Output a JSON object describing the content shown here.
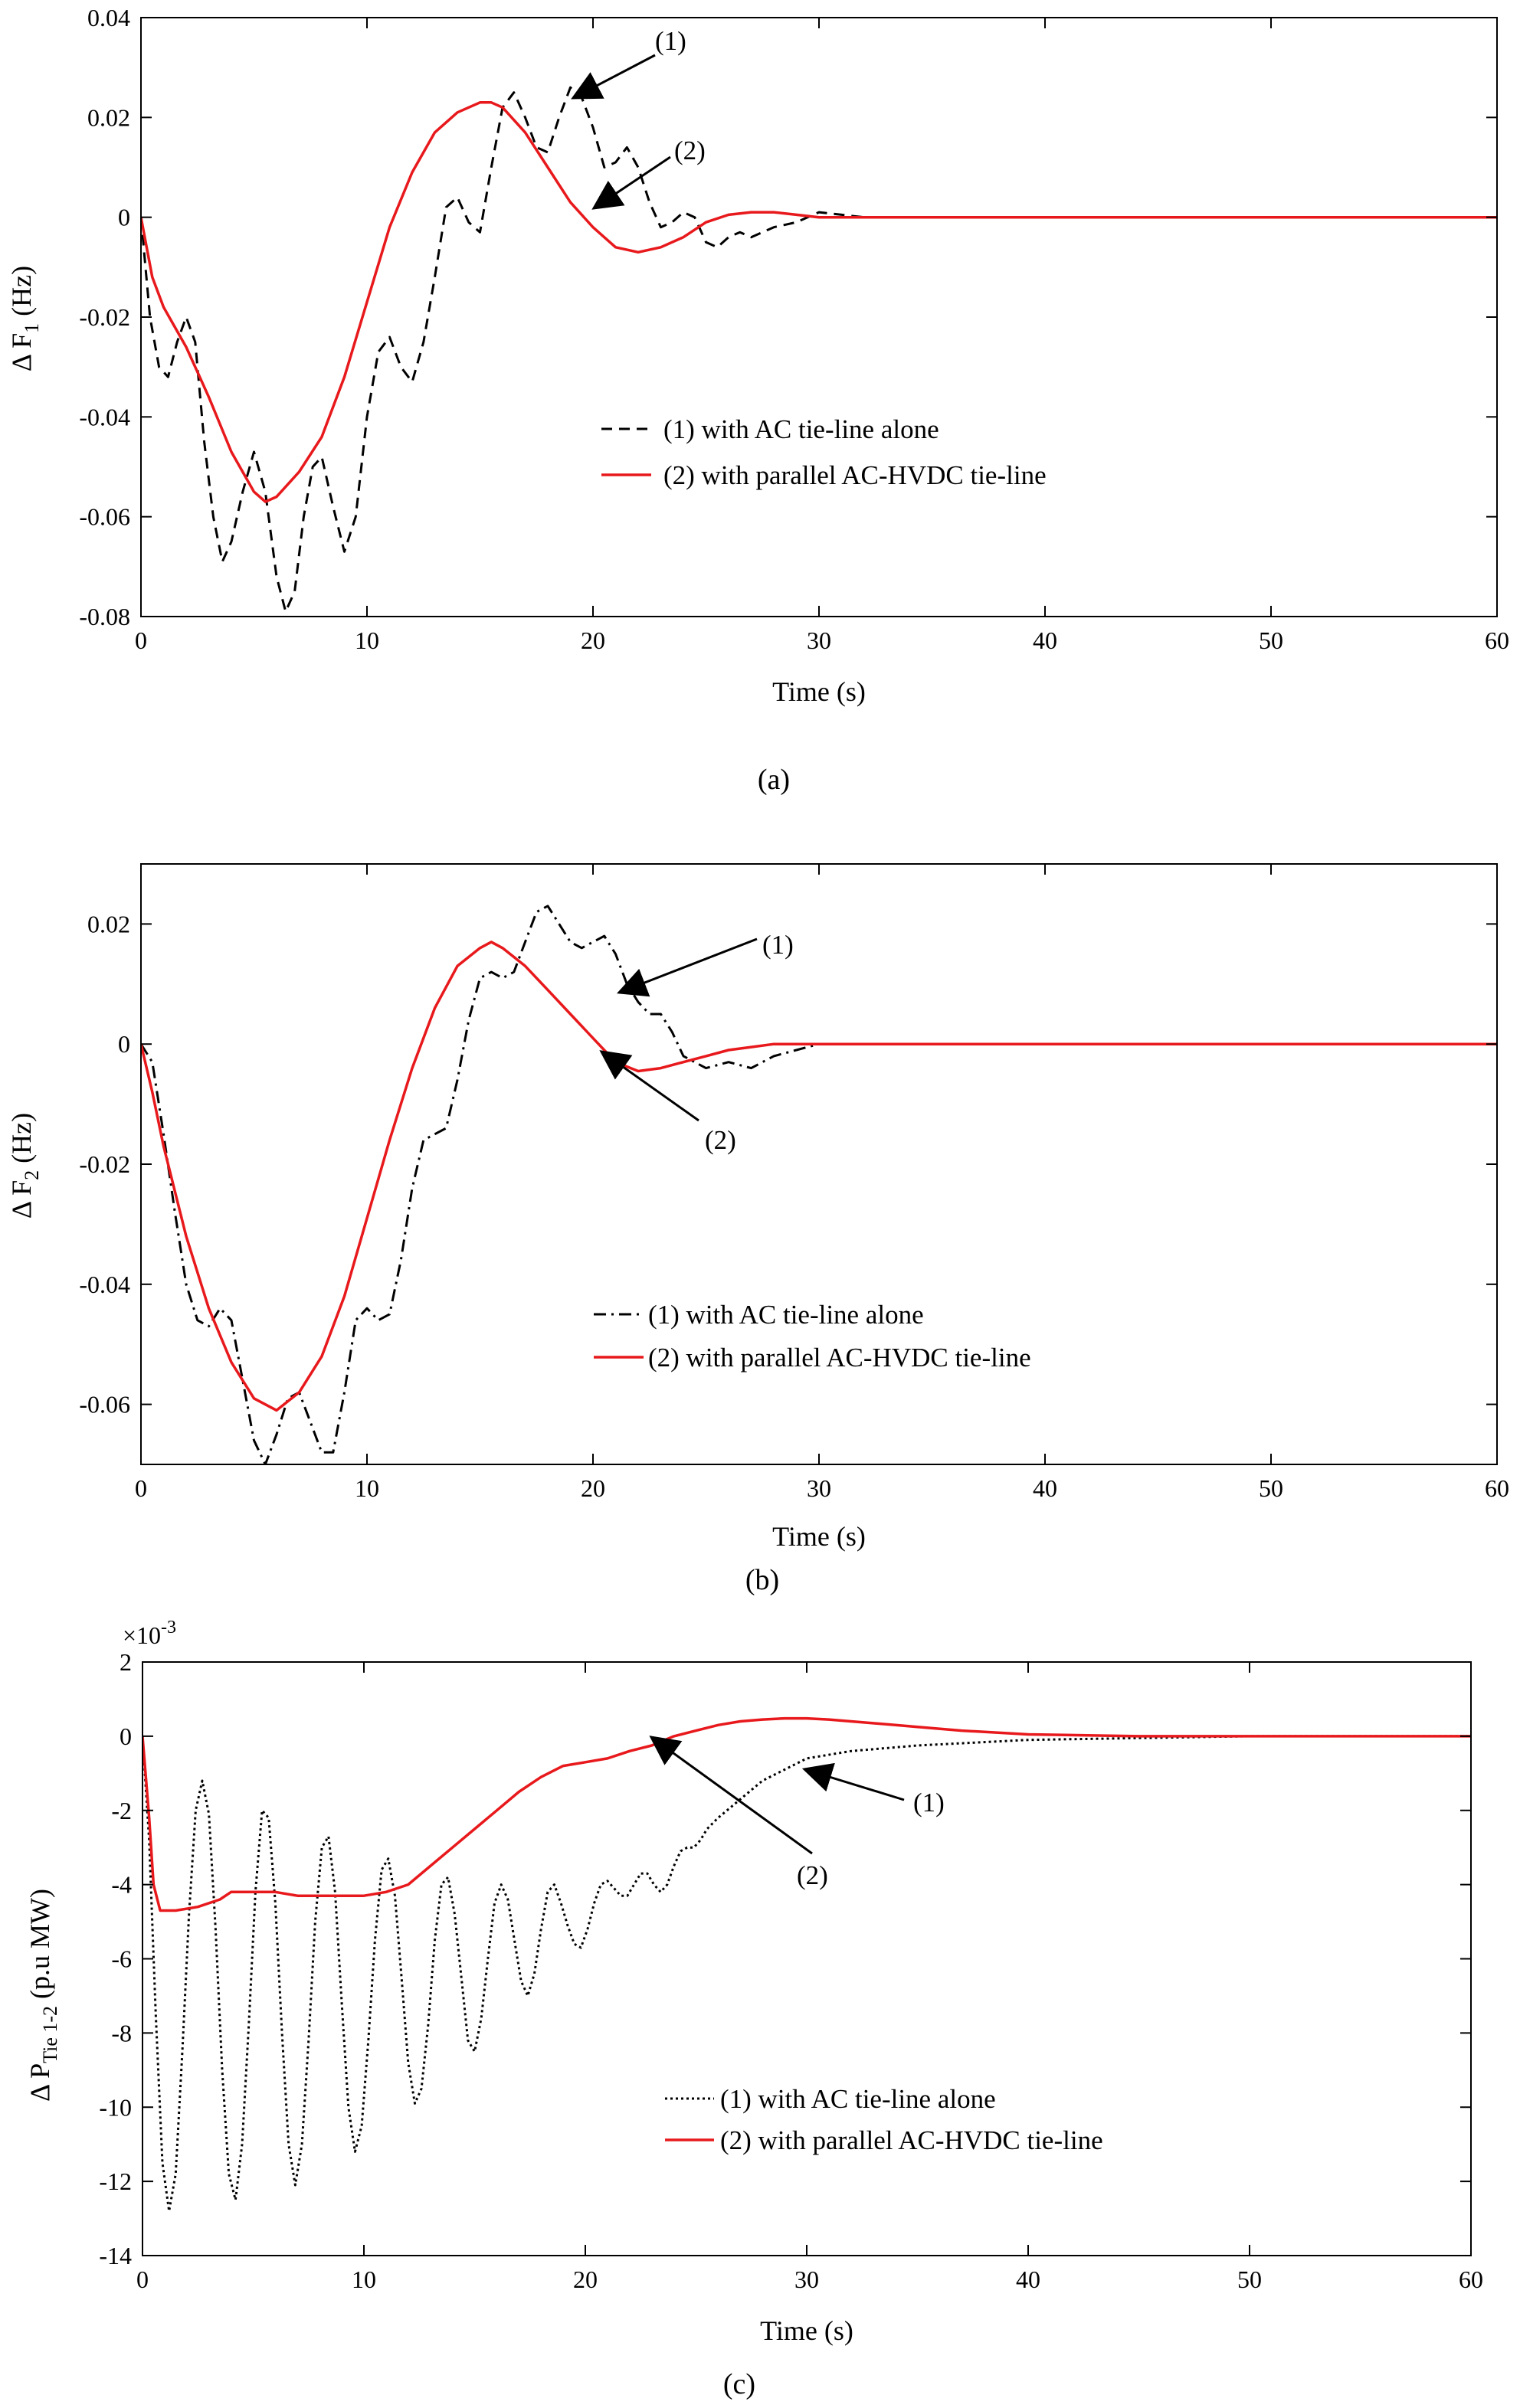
{
  "chart_data": [
    {
      "type": "line",
      "caption": "(a)",
      "xlabel": "Time (s)",
      "ylabel": {
        "prefix": "Δ F",
        "sub": "1",
        "suffix": " (Hz)"
      },
      "xlim": [
        0,
        60
      ],
      "ylim": [
        -0.08,
        0.04
      ],
      "xticks": [
        0,
        10,
        20,
        30,
        40,
        50,
        60
      ],
      "xtick_labels": [
        "0",
        "10",
        "20",
        "30",
        "40",
        "50",
        "60"
      ],
      "yticks": [
        -0.08,
        -0.06,
        -0.04,
        -0.02,
        0,
        0.02,
        0.04
      ],
      "ytick_labels": [
        "-0.08",
        "-0.06",
        "-0.04",
        "-0.02",
        "0",
        "0.02",
        "0.04"
      ],
      "exponent_label": "",
      "legend_position": "center-right",
      "series": [
        {
          "name": "(1) with AC tie-line alone",
          "color": "#000000",
          "style": "dashed",
          "x": [
            0,
            0.4,
            0.8,
            1.2,
            1.6,
            2.0,
            2.4,
            2.8,
            3.2,
            3.6,
            4.0,
            4.5,
            5.0,
            5.5,
            6.0,
            6.4,
            6.8,
            7.2,
            7.6,
            8.0,
            8.5,
            9.0,
            9.5,
            10.0,
            10.5,
            11.0,
            11.5,
            12.0,
            12.5,
            13.0,
            13.5,
            14.0,
            14.5,
            15.0,
            15.5,
            16.0,
            16.5,
            17.0,
            17.5,
            18.0,
            18.5,
            19.0,
            19.5,
            20.0,
            20.5,
            21.0,
            21.5,
            22.0,
            22.5,
            23.0,
            23.5,
            24.0,
            24.5,
            25.0,
            25.5,
            26.0,
            26.5,
            27.0,
            27.5,
            28.0,
            29.0,
            30.0,
            31.0,
            32.0,
            35.0,
            40.0,
            50.0,
            60.0
          ],
          "y": [
            0,
            -0.02,
            -0.03,
            -0.032,
            -0.025,
            -0.02,
            -0.025,
            -0.045,
            -0.06,
            -0.069,
            -0.065,
            -0.055,
            -0.047,
            -0.055,
            -0.072,
            -0.079,
            -0.075,
            -0.06,
            -0.05,
            -0.048,
            -0.058,
            -0.067,
            -0.06,
            -0.04,
            -0.027,
            -0.024,
            -0.03,
            -0.033,
            -0.025,
            -0.012,
            0.002,
            0.004,
            -0.001,
            -0.003,
            0.01,
            0.022,
            0.025,
            0.02,
            0.014,
            0.013,
            0.02,
            0.026,
            0.024,
            0.018,
            0.01,
            0.011,
            0.014,
            0.01,
            0.003,
            -0.002,
            -0.001,
            0.001,
            0.0,
            -0.005,
            -0.006,
            -0.004,
            -0.003,
            -0.004,
            -0.003,
            -0.002,
            -0.001,
            0.001,
            0.0005,
            0.0,
            0.0,
            0.0,
            0.0,
            0.0
          ]
        },
        {
          "name": "(2) with parallel AC-HVDC tie-line",
          "color": "#e8191c",
          "style": "solid",
          "x": [
            0,
            0.5,
            1,
            2,
            3,
            4,
            5,
            5.5,
            6,
            7,
            8,
            9,
            10,
            11,
            12,
            13,
            14,
            15,
            15.5,
            16,
            17,
            18,
            19,
            20,
            21,
            22,
            23,
            24,
            25,
            26,
            27,
            28,
            29,
            30,
            35,
            40,
            50,
            60
          ],
          "y": [
            0,
            -0.012,
            -0.018,
            -0.026,
            -0.036,
            -0.047,
            -0.055,
            -0.057,
            -0.056,
            -0.051,
            -0.044,
            -0.032,
            -0.017,
            -0.002,
            0.009,
            0.017,
            0.021,
            0.023,
            0.023,
            0.022,
            0.017,
            0.01,
            0.003,
            -0.002,
            -0.006,
            -0.007,
            -0.006,
            -0.004,
            -0.001,
            0.0005,
            0.001,
            0.001,
            0.0005,
            0.0,
            0.0,
            0.0,
            0.0,
            0.0
          ]
        }
      ],
      "annotations": [
        "(1)",
        "(2)"
      ]
    },
    {
      "type": "line",
      "caption": "(b)",
      "xlabel": "Time (s)",
      "ylabel": {
        "prefix": "Δ F",
        "sub": "2",
        "suffix": " (Hz)"
      },
      "xlim": [
        0,
        60
      ],
      "ylim": [
        -0.07,
        0.03
      ],
      "xticks": [
        0,
        10,
        20,
        30,
        40,
        50,
        60
      ],
      "xtick_labels": [
        "0",
        "10",
        "20",
        "30",
        "40",
        "50",
        "60"
      ],
      "yticks": [
        -0.06,
        -0.04,
        -0.02,
        0,
        0.02
      ],
      "ytick_labels": [
        "-0.06",
        "-0.04",
        "-0.02",
        "0",
        "0.02"
      ],
      "exponent_label": "",
      "legend_position": "center-right",
      "series": [
        {
          "name": "(1) with AC tie-line alone",
          "color": "#000000",
          "style": "dashdot",
          "x": [
            0,
            0.5,
            1,
            1.5,
            2,
            2.5,
            3,
            3.5,
            4,
            4.5,
            5,
            5.5,
            6,
            6.5,
            7,
            7.5,
            8,
            8.5,
            9,
            9.5,
            10,
            10.5,
            11,
            11.5,
            12,
            12.5,
            13,
            13.5,
            14,
            14.5,
            15,
            15.5,
            16,
            16.5,
            17,
            17.5,
            18,
            18.5,
            19,
            19.5,
            20,
            20.5,
            21,
            21.5,
            22,
            22.5,
            23,
            23.5,
            24,
            25,
            26,
            27,
            28,
            29,
            30,
            35,
            40,
            50,
            60
          ],
          "y": [
            0,
            -0.003,
            -0.015,
            -0.028,
            -0.04,
            -0.046,
            -0.047,
            -0.044,
            -0.046,
            -0.056,
            -0.066,
            -0.07,
            -0.065,
            -0.059,
            -0.058,
            -0.063,
            -0.068,
            -0.068,
            -0.058,
            -0.046,
            -0.044,
            -0.046,
            -0.045,
            -0.036,
            -0.024,
            -0.016,
            -0.015,
            -0.014,
            -0.006,
            0.004,
            0.011,
            0.012,
            0.011,
            0.012,
            0.017,
            0.022,
            0.023,
            0.02,
            0.017,
            0.016,
            0.017,
            0.018,
            0.015,
            0.01,
            0.007,
            0.005,
            0.005,
            0.002,
            -0.002,
            -0.004,
            -0.003,
            -0.004,
            -0.002,
            -0.001,
            0.0,
            0.0,
            0.0,
            0.0,
            0.0
          ]
        },
        {
          "name": "(2) with parallel AC-HVDC tie-line",
          "color": "#e8191c",
          "style": "solid",
          "x": [
            0,
            0.5,
            1,
            2,
            3,
            4,
            5,
            6,
            7,
            8,
            9,
            10,
            11,
            12,
            13,
            14,
            15,
            15.5,
            16,
            17,
            18,
            19,
            20,
            21,
            22,
            23,
            24,
            25,
            26,
            27,
            28,
            29,
            30,
            35,
            40,
            50,
            60
          ],
          "y": [
            0,
            -0.008,
            -0.017,
            -0.032,
            -0.044,
            -0.053,
            -0.059,
            -0.061,
            -0.058,
            -0.052,
            -0.042,
            -0.029,
            -0.016,
            -0.004,
            0.006,
            0.013,
            0.016,
            0.017,
            0.016,
            0.013,
            0.009,
            0.005,
            0.001,
            -0.003,
            -0.0045,
            -0.004,
            -0.003,
            -0.002,
            -0.001,
            -0.0005,
            0.0,
            0.0,
            0.0,
            0.0,
            0.0,
            0.0,
            0.0
          ]
        }
      ],
      "annotations": [
        "(1)",
        "(2)"
      ]
    },
    {
      "type": "line",
      "caption": "(c)",
      "xlabel": "Time (s)",
      "ylabel": {
        "prefix": "Δ P",
        "sub": "Tie 1-2",
        "suffix": " (p.u MW)"
      },
      "xlim": [
        0,
        60
      ],
      "ylim": [
        -0.014,
        0.002
      ],
      "xticks": [
        0,
        10,
        20,
        30,
        40,
        50,
        60
      ],
      "xtick_labels": [
        "0",
        "10",
        "20",
        "30",
        "40",
        "50",
        "60"
      ],
      "yticks": [
        -0.014,
        -0.012,
        -0.01,
        -0.008,
        -0.006,
        -0.004,
        -0.002,
        0,
        0.002
      ],
      "ytick_labels": [
        "-14",
        "-12",
        "-10",
        "-8",
        "-6",
        "-4",
        "-2",
        "0",
        "2"
      ],
      "exponent_label": "×10-3",
      "legend_position": "lower-center",
      "series": [
        {
          "name": "(1) with AC tie-line alone",
          "color": "#000000",
          "style": "dotted",
          "x": [
            0,
            0.3,
            0.6,
            0.9,
            1.2,
            1.5,
            1.8,
            2.1,
            2.4,
            2.7,
            3.0,
            3.3,
            3.6,
            3.9,
            4.2,
            4.5,
            4.8,
            5.1,
            5.4,
            5.7,
            6.0,
            6.3,
            6.6,
            6.9,
            7.2,
            7.5,
            7.8,
            8.1,
            8.4,
            8.7,
            9.0,
            9.3,
            9.6,
            9.9,
            10.2,
            10.5,
            10.8,
            11.1,
            11.4,
            11.7,
            12.0,
            12.3,
            12.6,
            12.9,
            13.2,
            13.5,
            13.8,
            14.1,
            14.4,
            14.7,
            15.0,
            15.3,
            15.6,
            15.9,
            16.2,
            16.5,
            16.8,
            17.1,
            17.4,
            17.7,
            18.0,
            18.3,
            18.6,
            18.9,
            19.2,
            19.5,
            19.8,
            20.1,
            20.4,
            20.7,
            21.0,
            21.3,
            21.6,
            21.9,
            22.2,
            22.5,
            22.8,
            23.1,
            23.4,
            23.7,
            24.0,
            24.3,
            24.6,
            24.9,
            25.2,
            25.5,
            26.0,
            27.0,
            28.0,
            29.0,
            30.0,
            32.0,
            35.0,
            40.0,
            45.0,
            50.0,
            60.0
          ],
          "y": [
            0,
            -0.0028,
            -0.0075,
            -0.0115,
            -0.0128,
            -0.0118,
            -0.0085,
            -0.0048,
            -0.002,
            -0.0012,
            -0.0021,
            -0.0052,
            -0.009,
            -0.0118,
            -0.0125,
            -0.011,
            -0.0078,
            -0.0042,
            -0.002,
            -0.0022,
            -0.0045,
            -0.008,
            -0.011,
            -0.0121,
            -0.011,
            -0.0082,
            -0.005,
            -0.003,
            -0.0027,
            -0.0042,
            -0.0072,
            -0.01,
            -0.0112,
            -0.0105,
            -0.0082,
            -0.0055,
            -0.0036,
            -0.0033,
            -0.0043,
            -0.0065,
            -0.0088,
            -0.0099,
            -0.0095,
            -0.0078,
            -0.0055,
            -0.004,
            -0.0038,
            -0.0048,
            -0.0065,
            -0.0082,
            -0.0085,
            -0.0076,
            -0.006,
            -0.0045,
            -0.004,
            -0.0044,
            -0.0055,
            -0.0066,
            -0.007,
            -0.0064,
            -0.0052,
            -0.0042,
            -0.004,
            -0.0045,
            -0.0051,
            -0.0056,
            -0.0057,
            -0.0052,
            -0.0045,
            -0.004,
            -0.0039,
            -0.0041,
            -0.0043,
            -0.0043,
            -0.004,
            -0.0037,
            -0.0037,
            -0.004,
            -0.0042,
            -0.004,
            -0.0035,
            -0.0031,
            -0.003,
            -0.003,
            -0.0028,
            -0.0025,
            -0.0022,
            -0.0017,
            -0.0012,
            -0.0009,
            -0.0006,
            -0.0004,
            -0.00025,
            -0.0001,
            -5e-05,
            0.0,
            0.0
          ]
        },
        {
          "name": "(2) with parallel AC-HVDC tie-line",
          "color": "#e8191c",
          "style": "solid",
          "x": [
            0,
            0.3,
            0.5,
            0.8,
            1.5,
            2.5,
            3.5,
            4.0,
            5.0,
            6.0,
            7.0,
            8.0,
            9.0,
            10.0,
            11.0,
            12.0,
            13.0,
            14.0,
            15.0,
            16.0,
            17.0,
            18.0,
            19.0,
            20.0,
            21.0,
            22.0,
            23.0,
            24.0,
            25.0,
            26.0,
            27.0,
            28.0,
            29.0,
            30.0,
            31.0,
            32.0,
            33.0,
            34.0,
            35.0,
            37.0,
            40.0,
            45.0,
            50.0,
            60.0
          ],
          "y": [
            0,
            -0.0022,
            -0.004,
            -0.0047,
            -0.0047,
            -0.0046,
            -0.0044,
            -0.0042,
            -0.0042,
            -0.0042,
            -0.0043,
            -0.0043,
            -0.0043,
            -0.0043,
            -0.0042,
            -0.004,
            -0.0035,
            -0.003,
            -0.0025,
            -0.002,
            -0.0015,
            -0.0011,
            -0.0008,
            -0.0007,
            -0.0006,
            -0.0004,
            -0.00025,
            0.0,
            0.00015,
            0.0003,
            0.0004,
            0.00045,
            0.00048,
            0.00048,
            0.00045,
            0.0004,
            0.00035,
            0.0003,
            0.00025,
            0.00015,
            5e-05,
            0.0,
            0.0,
            0.0
          ]
        }
      ],
      "annotations": [
        "(1)",
        "(2)"
      ]
    }
  ]
}
